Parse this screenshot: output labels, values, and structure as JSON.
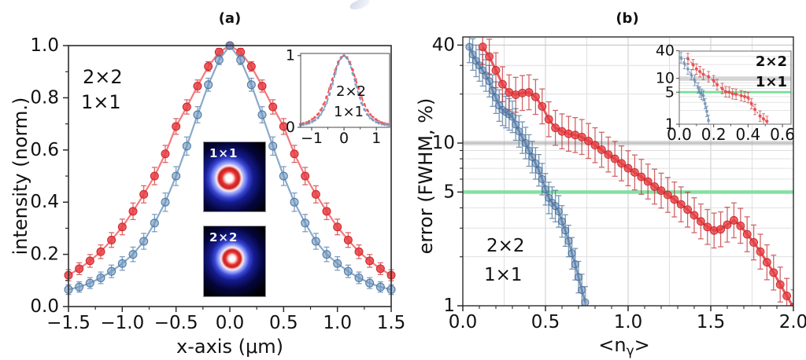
{
  "panels": {
    "a": {
      "title": "(a)",
      "legend": [
        {
          "label": "2×2",
          "color": "#4a7ab5"
        },
        {
          "label": "1×1",
          "color": "#e8332f"
        }
      ],
      "beam_insets": [
        {
          "label": "1×1"
        },
        {
          "label": "2×2"
        }
      ]
    },
    "b": {
      "title": "(b)",
      "legend": [
        {
          "label": "2×2",
          "color": "#4a7ab5"
        },
        {
          "label": "1×1",
          "color": "#e8332f"
        }
      ]
    }
  },
  "colors": {
    "blue": "#4a7ab5",
    "red": "#e8332f",
    "green_line": "#7fdf9d",
    "grid_minor": "#e0e0e0",
    "grid_major": "#cbcbcb",
    "frame": "#2b2b2b",
    "gray_band": "rgba(125,125,125,0.28)"
  },
  "chart_data": [
    {
      "id": "panel_a_main",
      "type": "scatter",
      "title": "(a)",
      "xlabel": "x-axis (μm)",
      "ylabel": "intensity (norm.)",
      "xlim": [
        -1.5,
        1.5
      ],
      "ylim": [
        0,
        1.0
      ],
      "grid": false,
      "xticks": [
        -1.5,
        -1.0,
        -0.5,
        0.0,
        0.5,
        1.0,
        1.5
      ],
      "xtick_labels": [
        "−1.5",
        "−1.0",
        "−0.5",
        "0.0",
        "0.5",
        "1.0",
        "1.5"
      ],
      "yticks": [
        0,
        0.2,
        0.4,
        0.6,
        0.8,
        1.0
      ],
      "ytick_labels": [
        "0.0",
        "0.2",
        "0.4",
        "0.6",
        "0.8",
        "1.0"
      ],
      "x": [
        -1.5,
        -1.4,
        -1.3,
        -1.2,
        -1.1,
        -1.0,
        -0.9,
        -0.8,
        -0.7,
        -0.6,
        -0.5,
        -0.4,
        -0.3,
        -0.2,
        -0.1,
        0.0,
        0.1,
        0.2,
        0.3,
        0.4,
        0.5,
        0.6,
        0.7,
        0.8,
        0.9,
        1.0,
        1.1,
        1.2,
        1.3,
        1.4,
        1.5
      ],
      "series": [
        {
          "name": "1×1",
          "color_line": "#f3797c",
          "color_fill": "rgba(234,62,67,0.85)",
          "color_edge": "#c8282d",
          "yerr": 0.035,
          "values": [
            0.12,
            0.145,
            0.175,
            0.21,
            0.255,
            0.305,
            0.365,
            0.43,
            0.5,
            0.585,
            0.69,
            0.765,
            0.845,
            0.92,
            0.975,
            1.0,
            0.975,
            0.92,
            0.845,
            0.765,
            0.69,
            0.585,
            0.5,
            0.43,
            0.365,
            0.305,
            0.255,
            0.21,
            0.175,
            0.145,
            0.12
          ]
        },
        {
          "name": "2×2",
          "color_line": "#8aa9c9",
          "color_fill": "rgba(109,148,189,0.6)",
          "color_edge": "#4a76a4",
          "yerr": 0.038,
          "values": [
            0.065,
            0.075,
            0.09,
            0.11,
            0.135,
            0.165,
            0.2,
            0.25,
            0.32,
            0.4,
            0.5,
            0.615,
            0.735,
            0.85,
            0.945,
            1.0,
            0.945,
            0.85,
            0.735,
            0.615,
            0.5,
            0.4,
            0.32,
            0.25,
            0.2,
            0.165,
            0.135,
            0.11,
            0.09,
            0.075,
            0.065
          ]
        }
      ],
      "legend": [
        {
          "label": "2×2",
          "color": "#4a7ab5"
        },
        {
          "label": "1×1",
          "color": "#e8332f"
        }
      ]
    },
    {
      "id": "panel_a_inset",
      "type": "line",
      "xlim": [
        -1.34,
        1.41
      ],
      "ylim": [
        0,
        1.03
      ],
      "xticks": [
        -1,
        0,
        1
      ],
      "xtick_labels": [
        "−1",
        "0",
        "1"
      ],
      "yticks": [
        0,
        1
      ],
      "ytick_labels": [
        "0",
        "1"
      ],
      "x": [
        -1.35,
        -1.26,
        -1.17,
        -1.08,
        -0.99,
        -0.9,
        -0.81,
        -0.72,
        -0.63,
        -0.54,
        -0.45,
        -0.36,
        -0.27,
        -0.18,
        -0.09,
        0.0,
        0.09,
        0.18,
        0.27,
        0.36,
        0.45,
        0.54,
        0.63,
        0.72,
        0.81,
        0.9,
        0.99,
        1.08,
        1.17,
        1.26,
        1.35
      ],
      "series": [
        {
          "name": "1×1",
          "color_line": "#ee4a4e",
          "color_fill": "rgba(238,74,78,0.7)",
          "color_edge": "#c8282d",
          "values": [
            0.045,
            0.055,
            0.065,
            0.085,
            0.11,
            0.14,
            0.18,
            0.24,
            0.32,
            0.42,
            0.54,
            0.67,
            0.8,
            0.91,
            0.975,
            1.0,
            0.975,
            0.91,
            0.8,
            0.67,
            0.54,
            0.42,
            0.32,
            0.24,
            0.18,
            0.14,
            0.11,
            0.085,
            0.065,
            0.055,
            0.045
          ]
        },
        {
          "name": "2×2",
          "color_line": "#7294bd",
          "color_fill": "rgba(114,148,189,0.7)",
          "color_edge": "#4a76a4",
          "values": [
            0.03,
            0.037,
            0.045,
            0.058,
            0.075,
            0.1,
            0.13,
            0.18,
            0.25,
            0.34,
            0.46,
            0.6,
            0.755,
            0.885,
            0.965,
            1.0,
            0.965,
            0.885,
            0.755,
            0.6,
            0.46,
            0.34,
            0.25,
            0.18,
            0.13,
            0.1,
            0.075,
            0.058,
            0.045,
            0.037,
            0.03
          ]
        }
      ],
      "legend": [
        {
          "label": "2×2",
          "color": "#4a7ab5"
        },
        {
          "label": "1×1",
          "color": "#e8332f"
        }
      ]
    },
    {
      "id": "panel_b_main",
      "type": "scatter",
      "title": "(b)",
      "xlabel_pre": "<n",
      "xlabel_sub": "γ",
      "xlabel_post": ">",
      "ylabel": "error (FWHM, %)",
      "yscale": "log",
      "xlim": [
        0,
        2.0
      ],
      "ylim": [
        1,
        45
      ],
      "grid": true,
      "xticks": [
        0,
        0.5,
        1.0,
        1.5,
        2.0
      ],
      "xtick_labels": [
        "0.0",
        "0.5",
        "1.0",
        "1.5",
        "2.0"
      ],
      "yticks": [
        40,
        10,
        5,
        1
      ],
      "ytick_labels": [
        "40",
        "10",
        "5",
        "1"
      ],
      "grid_minor_y": [
        2,
        3,
        4,
        6,
        7,
        8,
        9,
        20,
        30
      ],
      "green_threshold": 5,
      "gray_band": 10,
      "series": [
        {
          "name": "2×2",
          "color_line": "#5b84af",
          "color_fill": "rgba(96,132,174,0.55)",
          "color_edge": "#3f6995",
          "err_factor": 1.25,
          "x": [
            0.04,
            0.06,
            0.08,
            0.1,
            0.12,
            0.14,
            0.16,
            0.18,
            0.2,
            0.22,
            0.24,
            0.26,
            0.28,
            0.3,
            0.32,
            0.34,
            0.36,
            0.38,
            0.4,
            0.42,
            0.44,
            0.46,
            0.48,
            0.5,
            0.52,
            0.54,
            0.56,
            0.58,
            0.6,
            0.62,
            0.64,
            0.66,
            0.68,
            0.7,
            0.72,
            0.74
          ],
          "y": [
            39,
            35,
            32,
            30,
            28,
            26,
            24,
            21,
            19,
            17,
            16,
            15.5,
            15,
            14.5,
            13,
            11.8,
            10.8,
            10,
            9,
            8.2,
            7.5,
            6.8,
            6.0,
            5.2,
            4.6,
            4.3,
            4.1,
            3.8,
            3.3,
            2.9,
            2.5,
            2.1,
            1.8,
            1.5,
            1.25,
            1.05
          ]
        },
        {
          "name": "1×1",
          "color_line": "#e3393e",
          "color_fill": "rgba(232,62,66,0.8)",
          "color_edge": "#bf2429",
          "err_factor": 1.28,
          "x": [
            0.12,
            0.16,
            0.2,
            0.24,
            0.28,
            0.32,
            0.36,
            0.4,
            0.44,
            0.48,
            0.52,
            0.56,
            0.6,
            0.64,
            0.68,
            0.72,
            0.76,
            0.8,
            0.84,
            0.88,
            0.92,
            0.96,
            1.0,
            1.04,
            1.08,
            1.12,
            1.16,
            1.2,
            1.24,
            1.28,
            1.32,
            1.36,
            1.4,
            1.44,
            1.48,
            1.52,
            1.56,
            1.6,
            1.64,
            1.68,
            1.72,
            1.76,
            1.8,
            1.84,
            1.88,
            1.92,
            1.96,
            2.0
          ],
          "y": [
            39,
            34,
            28,
            23,
            20.5,
            19.8,
            20.3,
            20.5,
            19.2,
            16.8,
            14.0,
            12.4,
            11.8,
            11.4,
            11.2,
            10.9,
            10.3,
            9.7,
            9.1,
            8.5,
            8.0,
            7.5,
            7.0,
            6.6,
            6.2,
            5.8,
            5.4,
            5.1,
            4.8,
            4.5,
            4.2,
            3.9,
            3.6,
            3.3,
            3.05,
            2.9,
            2.95,
            3.15,
            3.35,
            3.1,
            2.75,
            2.45,
            2.15,
            1.85,
            1.6,
            1.35,
            1.15,
            0.98
          ]
        }
      ],
      "legend": [
        {
          "label": "2×2",
          "color": "#4a7ab5"
        },
        {
          "label": "1×1",
          "color": "#e8332f"
        }
      ]
    },
    {
      "id": "panel_b_inset",
      "type": "scatter",
      "yscale": "log",
      "xlim": [
        0,
        0.65
      ],
      "ylim": [
        1,
        40
      ],
      "xticks": [
        0,
        0.2,
        0.4,
        0.6
      ],
      "xtick_labels": [
        "0.0",
        "0.2",
        "0.4",
        "0.6"
      ],
      "yticks": [
        40,
        10,
        5,
        1
      ],
      "ytick_labels": [
        "40",
        "10",
        "5",
        "1"
      ],
      "grid_minor_y": [
        2,
        3,
        4,
        6,
        7,
        8,
        9,
        20,
        30
      ],
      "green_threshold": 5,
      "gray_band": 10,
      "series": [
        {
          "name": "2×2",
          "color_line": "#5b84af",
          "color_fill": "rgba(96,132,174,0.6)",
          "color_edge": "#3f6995",
          "err_factor": 1.3,
          "x": [
            0.01,
            0.03,
            0.05,
            0.07,
            0.09,
            0.11,
            0.12,
            0.13,
            0.14,
            0.15,
            0.16,
            0.17
          ],
          "y": [
            28,
            21,
            16,
            12,
            9,
            6.2,
            5.0,
            4.5,
            4.2,
            2.8,
            1.9,
            1.2
          ]
        },
        {
          "name": "1×1",
          "color_line": "#e3393e",
          "color_fill": "rgba(232,62,66,0.8)",
          "color_edge": "#bf2429",
          "err_factor": 1.3,
          "x": [
            0.05,
            0.08,
            0.1,
            0.12,
            0.14,
            0.17,
            0.2,
            0.22,
            0.25,
            0.27,
            0.29,
            0.31,
            0.33,
            0.36,
            0.38,
            0.4,
            0.42,
            0.44,
            0.47,
            0.49,
            0.51
          ],
          "y": [
            27,
            20,
            16,
            14,
            12.2,
            10.9,
            8.9,
            7.3,
            6.0,
            5.1,
            5.0,
            4.6,
            4.5,
            4.2,
            4.0,
            3.8,
            2.8,
            2.1,
            1.5,
            1.3,
            1.15
          ]
        }
      ],
      "legend": [
        {
          "label": "2×2",
          "color": "#4a7ab5"
        },
        {
          "label": "1×1",
          "color": "#e8332f"
        }
      ]
    }
  ]
}
